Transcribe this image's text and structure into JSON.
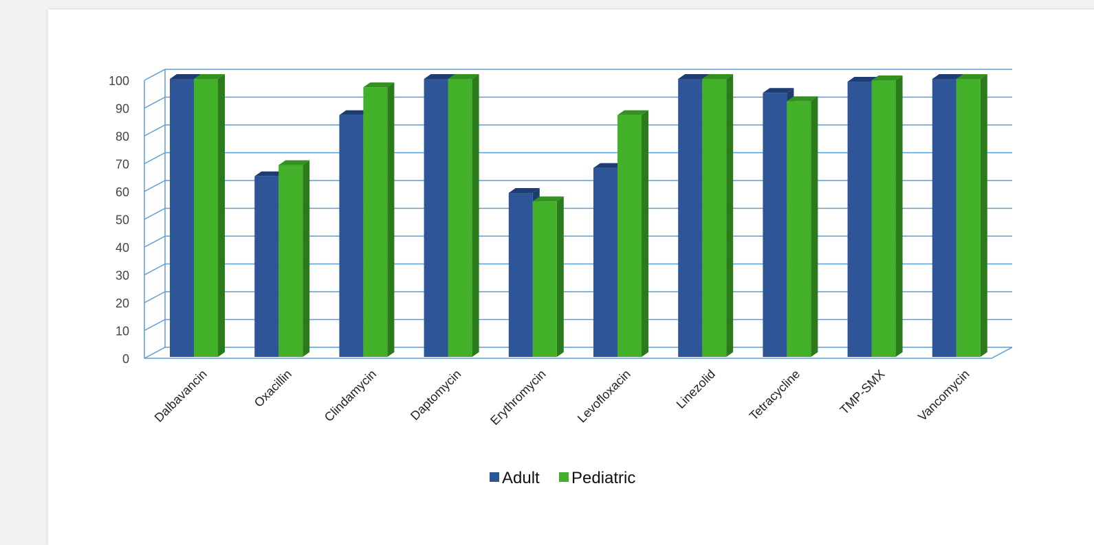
{
  "chart_data": {
    "type": "bar",
    "title": "",
    "xlabel": "",
    "ylabel": "",
    "ylim": [
      0,
      100
    ],
    "yticks": [
      0,
      10,
      20,
      30,
      40,
      50,
      60,
      70,
      80,
      90,
      100
    ],
    "categories": [
      "Dalbavancin",
      "Oxacillin",
      "Clindamycin",
      "Daptomycin",
      "Erythromycin",
      "Levofloxacin",
      "Linezolid",
      "Tetracycline",
      "TMP-SMX",
      "Vancomycin"
    ],
    "series": [
      {
        "name": "Adult",
        "values": [
          100,
          65,
          87,
          100,
          59,
          68,
          100,
          95,
          99,
          100
        ],
        "color": "#2e5597",
        "top_color": "#1f3d73",
        "side_color": "#1e3c6f"
      },
      {
        "name": "Pediatric",
        "values": [
          100,
          69,
          97,
          100,
          56,
          87,
          100,
          92,
          99.5,
          100
        ],
        "color": "#43b02a",
        "top_color": "#359022",
        "side_color": "#2b7a1c"
      }
    ],
    "grid": true,
    "gridline_color": "#5b9bd5",
    "legend_position": "bottom",
    "style": "3d-clustered-column"
  }
}
